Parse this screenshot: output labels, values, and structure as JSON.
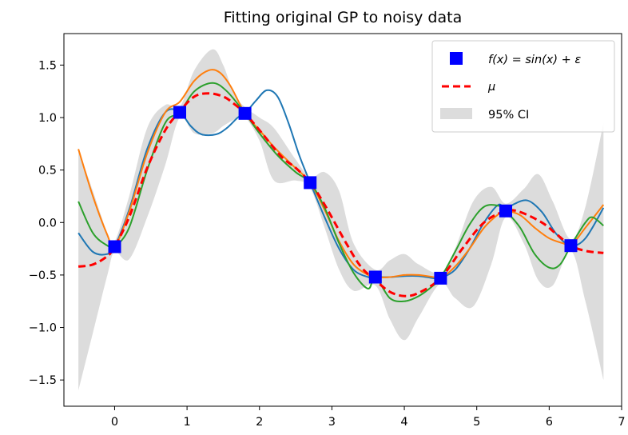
{
  "chart_data": {
    "type": "line",
    "title": "Fitting original GP to noisy data",
    "xlabel": "",
    "ylabel": "",
    "xlim": [
      -0.7,
      7.0
    ],
    "ylim": [
      -1.75,
      1.8
    ],
    "xticks": [
      0,
      1,
      2,
      3,
      4,
      5,
      6,
      7
    ],
    "yticks": [
      -1.5,
      -1.0,
      -0.5,
      0.0,
      0.5,
      1.0,
      1.5
    ],
    "xtick_labels": [
      "0",
      "1",
      "2",
      "3",
      "4",
      "5",
      "6",
      "7"
    ],
    "ytick_labels": [
      "−1.5",
      "−1.0",
      "−0.5",
      "0.0",
      "0.5",
      "1.0",
      "1.5"
    ],
    "grid": false,
    "legend_position": "top-right",
    "legend": {
      "data_label": "f(x) = sin(x) + ε",
      "mean_label": "μ",
      "ci_label": "95% CI"
    },
    "observations": {
      "color": "#0000ff",
      "x": [
        0.0,
        0.9,
        1.8,
        2.7,
        3.6,
        4.5,
        5.4,
        6.3
      ],
      "y": [
        -0.23,
        1.05,
        1.04,
        0.38,
        -0.52,
        -0.53,
        0.11,
        -0.22
      ]
    },
    "mean": {
      "color": "#ff0000",
      "x": [
        -0.5,
        -0.3,
        -0.1,
        0.0,
        0.2,
        0.45,
        0.7,
        0.9,
        1.1,
        1.3,
        1.5,
        1.65,
        1.8,
        2.0,
        2.3,
        2.5,
        2.7,
        2.9,
        3.2,
        3.4,
        3.6,
        3.8,
        4.0,
        4.2,
        4.5,
        4.8,
        5.1,
        5.4,
        5.6,
        5.9,
        6.1,
        6.3,
        6.5,
        6.75
      ],
      "y": [
        -0.42,
        -0.4,
        -0.32,
        -0.23,
        0.05,
        0.52,
        0.88,
        1.06,
        1.2,
        1.23,
        1.2,
        1.13,
        1.04,
        0.88,
        0.63,
        0.52,
        0.38,
        0.17,
        -0.2,
        -0.42,
        -0.55,
        -0.66,
        -0.7,
        -0.67,
        -0.53,
        -0.25,
        0.0,
        0.11,
        0.1,
        0.0,
        -0.11,
        -0.22,
        -0.27,
        -0.29
      ]
    },
    "ci": {
      "color": "#dcdcdc",
      "x": [
        -0.5,
        -0.3,
        -0.1,
        0.0,
        0.2,
        0.45,
        0.7,
        0.9,
        1.1,
        1.35,
        1.5,
        1.65,
        1.8,
        2.0,
        2.2,
        2.5,
        2.7,
        2.9,
        3.1,
        3.3,
        3.6,
        3.8,
        4.0,
        4.2,
        4.5,
        4.7,
        4.95,
        5.2,
        5.4,
        5.65,
        5.85,
        6.05,
        6.3,
        6.5,
        6.75
      ],
      "upper": [
        0.7,
        0.3,
        -0.1,
        -0.18,
        0.25,
        0.9,
        1.12,
        1.1,
        1.45,
        1.65,
        1.5,
        1.22,
        1.1,
        1.0,
        0.9,
        0.6,
        0.43,
        0.48,
        0.3,
        -0.2,
        -0.45,
        -0.36,
        -0.3,
        -0.4,
        -0.48,
        -0.25,
        0.2,
        0.34,
        0.18,
        0.32,
        0.46,
        0.2,
        -0.16,
        0.15,
        0.95
      ],
      "lower": [
        -1.6,
        -1.05,
        -0.5,
        -0.28,
        -0.35,
        0.05,
        0.55,
        1.0,
        0.85,
        0.85,
        0.92,
        0.98,
        1.0,
        0.78,
        0.4,
        0.4,
        0.33,
        -0.05,
        -0.45,
        -0.65,
        -0.6,
        -0.92,
        -1.12,
        -0.9,
        -0.58,
        -0.72,
        -0.8,
        -0.4,
        0.05,
        -0.2,
        -0.55,
        -0.6,
        -0.27,
        -0.75,
        -1.5
      ]
    },
    "series": [
      {
        "color": "#1f77b4",
        "x": [
          -0.5,
          -0.3,
          -0.1,
          0.0,
          0.2,
          0.45,
          0.7,
          0.9,
          1.05,
          1.2,
          1.4,
          1.55,
          1.7,
          1.8,
          1.95,
          2.1,
          2.25,
          2.4,
          2.55,
          2.7,
          2.9,
          3.1,
          3.3,
          3.5,
          3.6,
          3.8,
          4.0,
          4.2,
          4.4,
          4.5,
          4.7,
          4.9,
          5.1,
          5.3,
          5.4,
          5.5,
          5.7,
          5.9,
          6.1,
          6.3,
          6.5,
          6.75
        ],
        "y": [
          -0.1,
          -0.28,
          -0.3,
          -0.23,
          0.12,
          0.7,
          1.05,
          1.05,
          0.92,
          0.84,
          0.84,
          0.9,
          1.0,
          1.04,
          1.16,
          1.26,
          1.2,
          0.95,
          0.64,
          0.38,
          0.05,
          -0.25,
          -0.45,
          -0.52,
          -0.52,
          -0.52,
          -0.51,
          -0.51,
          -0.53,
          -0.53,
          -0.45,
          -0.25,
          0.0,
          0.17,
          0.11,
          0.17,
          0.21,
          0.1,
          -0.11,
          -0.22,
          -0.15,
          0.14
        ]
      },
      {
        "color": "#ff7f0e",
        "x": [
          -0.5,
          -0.3,
          -0.1,
          0.0,
          0.2,
          0.45,
          0.7,
          0.9,
          1.1,
          1.3,
          1.45,
          1.6,
          1.8,
          2.0,
          2.2,
          2.45,
          2.7,
          2.9,
          3.1,
          3.3,
          3.5,
          3.6,
          3.8,
          4.0,
          4.2,
          4.4,
          4.5,
          4.7,
          4.9,
          5.1,
          5.3,
          5.4,
          5.6,
          5.8,
          6.0,
          6.2,
          6.3,
          6.5,
          6.75
        ],
        "y": [
          0.7,
          0.25,
          -0.12,
          -0.23,
          0.1,
          0.66,
          1.05,
          1.15,
          1.35,
          1.45,
          1.43,
          1.3,
          1.04,
          0.88,
          0.72,
          0.55,
          0.38,
          0.12,
          -0.18,
          -0.4,
          -0.5,
          -0.52,
          -0.52,
          -0.5,
          -0.5,
          -0.52,
          -0.53,
          -0.42,
          -0.25,
          -0.05,
          0.08,
          0.11,
          0.07,
          -0.05,
          -0.15,
          -0.2,
          -0.22,
          -0.05,
          0.17
        ]
      },
      {
        "color": "#2ca02c",
        "x": [
          -0.5,
          -0.3,
          -0.1,
          0.0,
          0.2,
          0.45,
          0.7,
          0.9,
          1.1,
          1.35,
          1.55,
          1.8,
          2.0,
          2.25,
          2.5,
          2.7,
          2.9,
          3.1,
          3.3,
          3.5,
          3.6,
          3.8,
          4.0,
          4.2,
          4.4,
          4.5,
          4.7,
          4.9,
          5.1,
          5.3,
          5.4,
          5.6,
          5.8,
          6.0,
          6.15,
          6.3,
          6.5,
          6.6,
          6.75
        ],
        "y": [
          0.2,
          -0.1,
          -0.22,
          -0.23,
          -0.05,
          0.5,
          0.95,
          1.05,
          1.25,
          1.33,
          1.25,
          1.04,
          0.85,
          0.64,
          0.48,
          0.38,
          0.14,
          -0.2,
          -0.48,
          -0.63,
          -0.52,
          -0.72,
          -0.75,
          -0.7,
          -0.6,
          -0.53,
          -0.28,
          -0.02,
          0.15,
          0.16,
          0.11,
          -0.05,
          -0.3,
          -0.43,
          -0.4,
          -0.22,
          0.0,
          0.05,
          -0.03
        ]
      }
    ]
  }
}
